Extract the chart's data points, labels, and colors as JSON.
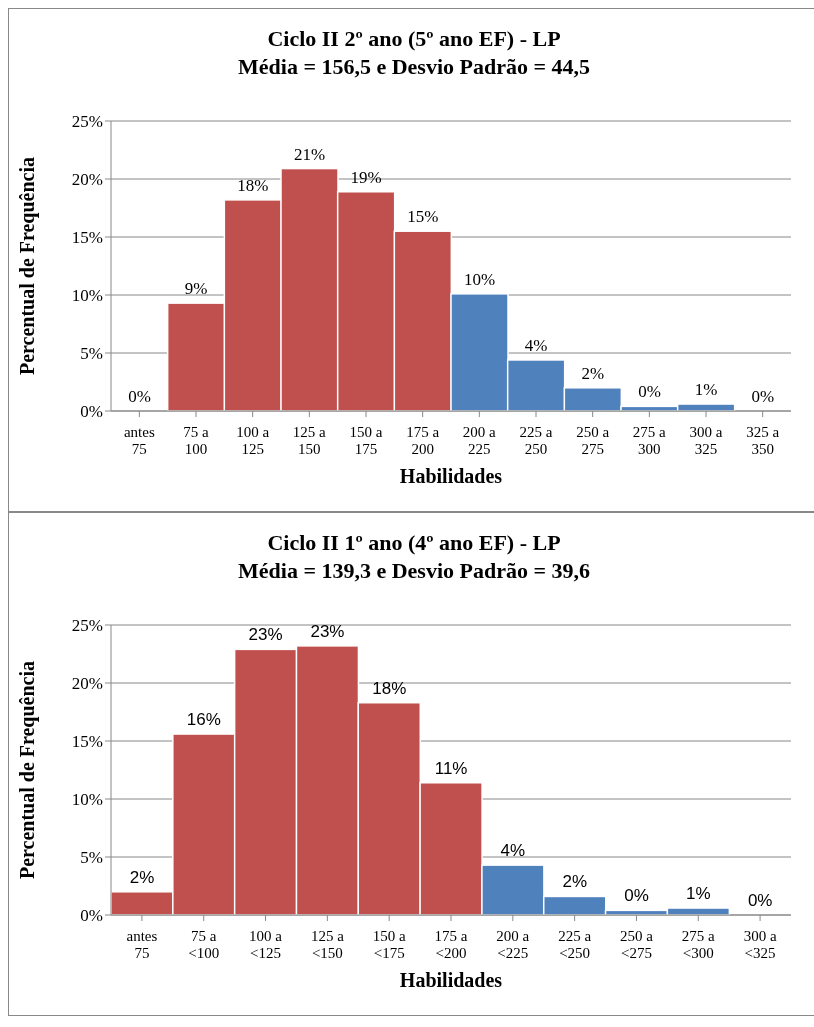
{
  "chart_data": [
    {
      "type": "bar",
      "title": "Ciclo II 2º ano (5º ano EF) - LP\nMédia = 156,5 e Desvio Padrão = 44,5",
      "xlabel": "Habilidades",
      "ylabel": "Percentual de Frequência",
      "categories": [
        "antes\n75",
        "75 a\n100",
        "100 a\n125",
        "125 a\n150",
        "150 a\n175",
        "175 a\n200",
        "200 a\n225",
        "225 a\n250",
        "250 a\n275",
        "275 a\n300",
        "300 a\n325",
        "325 a\n350"
      ],
      "values": [
        0,
        9.3,
        18.2,
        20.9,
        18.9,
        15.5,
        10.1,
        4.4,
        2.0,
        0.4,
        0.6,
        0
      ],
      "value_labels": [
        "0%",
        "9%",
        "18%",
        "21%",
        "19%",
        "15%",
        "10%",
        "4%",
        "2%",
        "0%",
        "1%",
        "0%"
      ],
      "colors": [
        "#c0504d",
        "#c0504d",
        "#c0504d",
        "#c0504d",
        "#c0504d",
        "#c0504d",
        "#4f81bd",
        "#4f81bd",
        "#4f81bd",
        "#4f81bd",
        "#4f81bd",
        "#4f81bd"
      ],
      "ylim": [
        0,
        25
      ],
      "yticks": [
        {
          "value": 0,
          "label": "0%"
        },
        {
          "value": 5,
          "label": "5%"
        },
        {
          "value": 10,
          "label": "10%"
        },
        {
          "value": 15,
          "label": "15%"
        },
        {
          "value": 20,
          "label": "20%"
        },
        {
          "value": 25,
          "label": "25%"
        }
      ],
      "grid": "y",
      "legend": false
    },
    {
      "type": "bar",
      "title": "Ciclo II 1º ano (4º ano EF) - LP\nMédia = 139,3 e Desvio Padrão = 39,6",
      "xlabel": "Habilidades",
      "ylabel": "Percentual de Frequência",
      "categories": [
        "antes\n75",
        "75 a\n<100",
        "100 a\n<125",
        "125 a\n<150",
        "150 a\n<175",
        "175 a\n<200",
        "200 a\n<225",
        "225 a\n<250",
        "250 a\n<275",
        "275 a\n<300",
        "300 a\n<325"
      ],
      "values": [
        2.0,
        15.6,
        22.9,
        23.2,
        18.3,
        11.4,
        4.3,
        1.6,
        0.4,
        0.6,
        0
      ],
      "value_labels": [
        "2%",
        "16%",
        "23%",
        "23%",
        "18%",
        "11%",
        "4%",
        "2%",
        "0%",
        "1%",
        "0%"
      ],
      "colors": [
        "#c0504d",
        "#c0504d",
        "#c0504d",
        "#c0504d",
        "#c0504d",
        "#c0504d",
        "#4f81bd",
        "#4f81bd",
        "#4f81bd",
        "#4f81bd",
        "#4f81bd"
      ],
      "ylim": [
        0,
        25
      ],
      "yticks": [
        {
          "value": 0,
          "label": "0%"
        },
        {
          "value": 5,
          "label": "5%"
        },
        {
          "value": 10,
          "label": "10%"
        },
        {
          "value": 15,
          "label": "15%"
        },
        {
          "value": 20,
          "label": "20%"
        },
        {
          "value": 25,
          "label": "25%"
        }
      ],
      "grid": "y",
      "legend": false
    }
  ]
}
